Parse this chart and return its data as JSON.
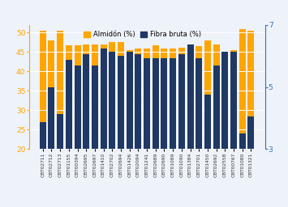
{
  "categories": [
    "CBT02711",
    "CBT02712",
    "CBT02713",
    "CBT01155",
    "CBT00394",
    "CBT02695",
    "CBT02697",
    "CBT01410",
    "CBT02702",
    "CBT02694",
    "CBT01426",
    "CBT02094",
    "CBT01241",
    "CBT02689",
    "CBT02690",
    "CBT01089",
    "CBT01090",
    "CBT01384",
    "CBT02701",
    "CBT01450",
    "CBT02692",
    "CBT02558",
    "CBT00767",
    "CBT01080",
    "CBT01321"
  ],
  "almidon": [
    50.5,
    48,
    50.5,
    46.7,
    46.7,
    47,
    47,
    47,
    47.5,
    47.5,
    45.5,
    46,
    46,
    46.7,
    46,
    46,
    46.2,
    47,
    46.5,
    48,
    47,
    45,
    45.5,
    51,
    50.5
  ],
  "fibra_bruta": [
    27,
    36,
    29,
    43,
    41.5,
    44.5,
    41.5,
    46,
    45,
    44,
    45,
    44.5,
    43.5,
    43.5,
    43.5,
    43.5,
    44.5,
    47,
    43.5,
    34,
    41.5,
    45,
    45,
    24,
    28.5
  ],
  "fibra_color": "#1F3864",
  "almidon_color": "#FFA500",
  "ylim_left": [
    20,
    52
  ],
  "ylim_right": [
    3,
    7
  ],
  "legend_labels": [
    "Almidón (%)",
    "Fibra bruta (%)"
  ],
  "tick_color_left": "#FFA500",
  "tick_color_right": "#2E75B6",
  "yticks_left": [
    20,
    25,
    30,
    35,
    40,
    45,
    50
  ],
  "yticks_right": [
    3,
    5,
    7
  ],
  "background_color": "#EEF2F9"
}
